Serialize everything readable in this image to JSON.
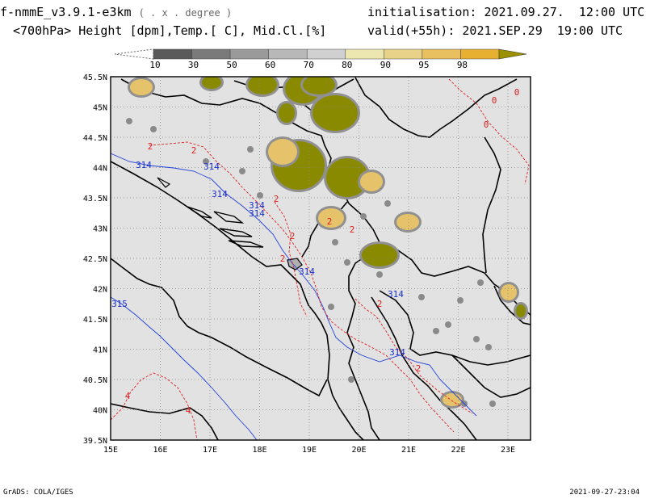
{
  "header": {
    "model": "f-nmmE_v3.9.1-e3km",
    "units": "( . x . degree )",
    "variables": "<700hPa> Height [dpm],Temp.[ C], Mid.Cl.[%]",
    "init_label": "initialisation:",
    "init_value": "2021.09.27.  12:00 UTC",
    "valid_label": "valid(+55h):",
    "valid_value": "2021.SEP.29  19:00 UTC"
  },
  "colorbar": {
    "levels": [
      "10",
      "30",
      "50",
      "60",
      "70",
      "80",
      "90",
      "95",
      "98"
    ],
    "colors": [
      "#5a5a5a",
      "#7a7a7a",
      "#9a9a9a",
      "#b8b8b8",
      "#d0d0d0",
      "#ece6b0",
      "#e8d28a",
      "#e8c060",
      "#e8b030",
      "#9a9000"
    ]
  },
  "map": {
    "land_color": "#e2e2e2",
    "cloud_dark": "#8a8a00",
    "height_color": "#1a2fcc",
    "temp_color": "#dd2222",
    "lat_labels": [
      "45.5N",
      "45N",
      "44.5N",
      "44N",
      "43.5N",
      "43N",
      "42.5N",
      "42N",
      "41.5N",
      "41N",
      "40.5N",
      "40N",
      "39.5N"
    ],
    "lon_labels": [
      "15E",
      "16E",
      "17E",
      "18E",
      "19E",
      "20E",
      "21E",
      "22E",
      "23E"
    ],
    "height_labels": [
      "314",
      "314",
      "314",
      "314",
      "314",
      "314",
      "314",
      "314",
      "315"
    ],
    "temp_labels": [
      "2",
      "2",
      "2",
      "2",
      "2",
      "2",
      "2",
      "2",
      "2",
      "0",
      "0",
      "0",
      "4",
      "4"
    ]
  },
  "footer": {
    "left": "GrADS: COLA/IGES",
    "right": "2021-09-27-23:04"
  }
}
